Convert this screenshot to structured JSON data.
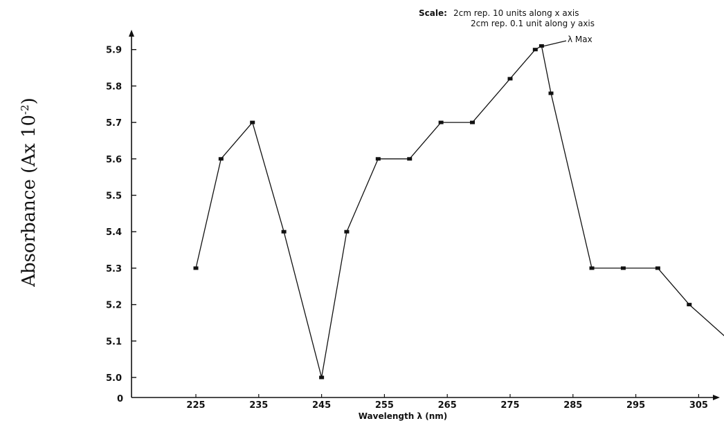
{
  "chart_data": {
    "type": "line",
    "xlabel": "Wavelength λ (nm)",
    "ylabel_base": "Absorbance (Ax 10",
    "ylabel_exp": "-2",
    "ylabel_close": ")",
    "scale_label": "Scale:",
    "scale_line1": "2cm rep. 10 units along x axis",
    "scale_line2": "2cm rep. 0.1 unit along y axis",
    "annotation": "λ Max",
    "origin_label": "0",
    "x_ticks": [
      "225",
      "235",
      "245",
      "255",
      "265",
      "275",
      "285",
      "295",
      "305"
    ],
    "y_ticks": [
      "5.0",
      "5.1",
      "5.2",
      "5.3",
      "5.4",
      "5.5",
      "5.6",
      "5.7",
      "5.8",
      "5.9"
    ],
    "x_tick_values": [
      225,
      235,
      245,
      255,
      265,
      275,
      285,
      295,
      305
    ],
    "y_tick_values": [
      5.0,
      5.1,
      5.2,
      5.3,
      5.4,
      5.5,
      5.6,
      5.7,
      5.8,
      5.9
    ],
    "xlim": [
      215,
      312
    ],
    "ylim": [
      4.96,
      6.06
    ],
    "series": [
      {
        "points": [
          [
            225,
            5.3
          ],
          [
            229,
            5.6
          ],
          [
            234,
            5.7
          ],
          [
            239,
            5.4
          ],
          [
            245,
            5.0
          ],
          [
            249,
            5.4
          ],
          [
            254,
            5.6
          ],
          [
            259,
            5.6
          ],
          [
            264,
            5.7
          ],
          [
            269,
            5.7
          ],
          [
            275,
            5.82
          ],
          [
            279,
            5.9
          ],
          [
            280,
            5.91
          ],
          [
            281.5,
            5.78
          ],
          [
            288,
            5.3
          ],
          [
            293,
            5.3
          ],
          [
            298.5,
            5.3
          ],
          [
            303.5,
            5.2
          ]
        ],
        "tail": [
          310,
          5.1
        ]
      }
    ],
    "max_point": [
      279,
      5.9
    ],
    "grid": false,
    "legend": "none"
  }
}
